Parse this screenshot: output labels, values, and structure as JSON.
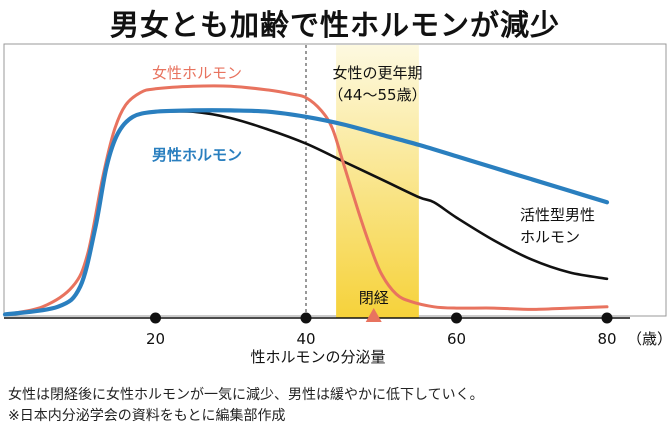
{
  "title": "男女とも加齢で性ホルモンが減少",
  "chart_data": {
    "type": "line",
    "x_ticks": [
      20,
      40,
      60,
      80
    ],
    "x_unit": "（歳）",
    "xlim": [
      0,
      80
    ],
    "xlabel": "性ホルモンの分泌量",
    "ylim": [
      0,
      100
    ],
    "highlight_band": {
      "from": 44,
      "to": 55,
      "label_line1": "女性の更年期",
      "label_line2": "（44〜55歳）",
      "gradient_top": "#fdf9e0",
      "gradient_bottom": "#f6d23a"
    },
    "divider_x": 40,
    "menopause": {
      "x": 49,
      "label": "閉経",
      "color": "#e8735f"
    },
    "series": [
      {
        "name": "女性ホルモン",
        "color": "#e8735f",
        "x": [
          0,
          5,
          9,
          11,
          13,
          14.5,
          16,
          18,
          20,
          25,
          30,
          35,
          38,
          40,
          42,
          43.5,
          45,
          47,
          48.5,
          50,
          52,
          54,
          57,
          60,
          65,
          70,
          75,
          80
        ],
        "y": [
          1,
          4,
          12,
          25,
          55,
          73,
          83,
          88,
          89.5,
          90.5,
          90.5,
          89,
          87.5,
          86,
          81,
          74,
          60,
          41,
          28,
          17,
          9,
          6,
          4,
          3.5,
          3.5,
          3,
          3.5,
          4
        ]
      },
      {
        "name": "男性ホルモン",
        "color": "#2a7fbf",
        "x": [
          0,
          7,
          10,
          12,
          13.5,
          15,
          17,
          20,
          25,
          30,
          35,
          40,
          45,
          50,
          55,
          60,
          65,
          70,
          75,
          80
        ],
        "y": [
          1,
          4,
          12,
          35,
          59,
          72,
          78.5,
          80.5,
          81,
          81,
          80.5,
          78.5,
          75.5,
          71.5,
          67.5,
          63,
          58.5,
          54,
          49.5,
          45
        ]
      },
      {
        "name": "活性型男性ホルモン",
        "name_lines": [
          "活性型男性",
          "ホルモン"
        ],
        "color": "#111111",
        "x": [
          20,
          25,
          30,
          35,
          40,
          45,
          50,
          55,
          57,
          60,
          65,
          70,
          75,
          80
        ],
        "y": [
          80.5,
          80.5,
          78,
          73.5,
          68,
          61,
          54,
          47,
          45,
          39,
          30,
          22.5,
          17.5,
          15
        ]
      }
    ]
  },
  "captions": [
    "女性は閉経後に女性ホルモンが一気に減少、男性は緩やかに低下していく。",
    "※日本内分泌学会の資料をもとに編集部作成"
  ]
}
